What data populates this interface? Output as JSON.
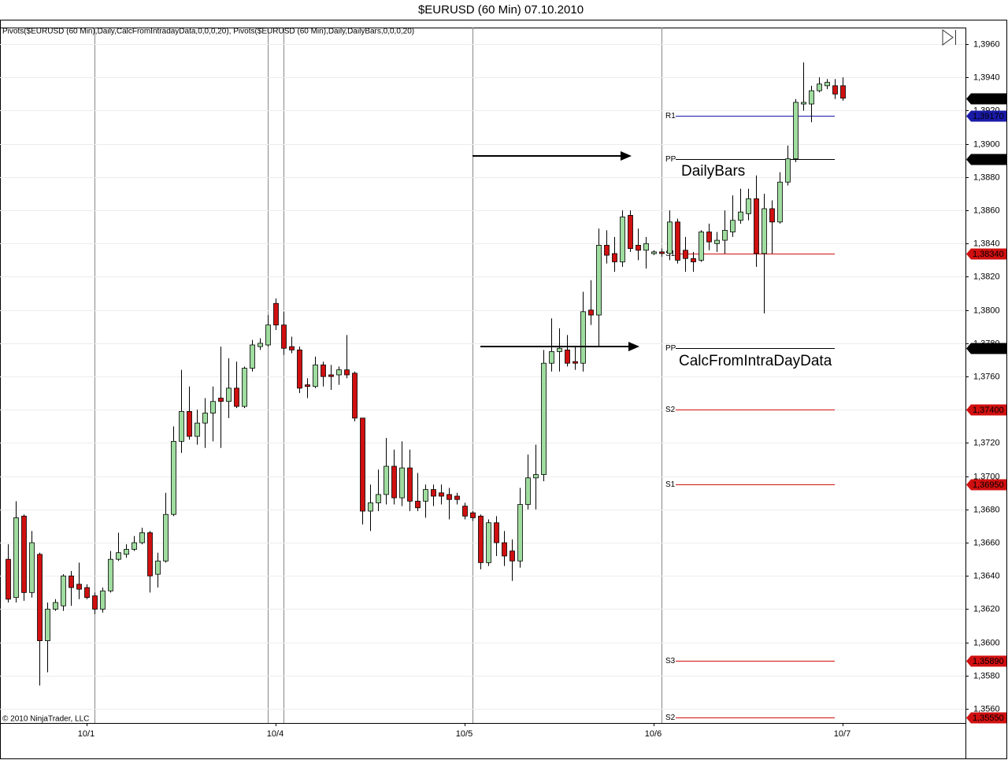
{
  "chart_data": {
    "type": "candlestick",
    "title": "$EURUSD (60 Min)  07.10.2010",
    "indicator_label": "Pivots($EURUSD (60 Min),Daily,CalcFromIntradayData,0,0,0,20), Pivots($EURUSD (60 Min),Daily,DailyBars,0,0,0,20)",
    "copyright": "© 2010 NinjaTrader, LLC",
    "annotations": [
      "DailyBars",
      "CalcFromIntraDayData"
    ],
    "up_color": "#9fdc9f",
    "down_color": "#d01010",
    "grid": true,
    "categories": [
      null,
      null,
      null,
      null,
      null,
      null,
      null,
      null,
      null,
      null,
      "10/1",
      null,
      null,
      null,
      null,
      null,
      null,
      null,
      null,
      null,
      null,
      null,
      null,
      null,
      null,
      null,
      null,
      null,
      null,
      null,
      null,
      null,
      null,
      null,
      "10/4",
      null,
      null,
      null,
      null,
      null,
      null,
      null,
      null,
      null,
      null,
      null,
      null,
      null,
      null,
      null,
      null,
      null,
      null,
      null,
      null,
      null,
      null,
      null,
      "10/5",
      null,
      null,
      null,
      null,
      null,
      null,
      null,
      null,
      null,
      null,
      null,
      null,
      null,
      null,
      null,
      null,
      null,
      null,
      null,
      null,
      null,
      null,
      null,
      "10/6",
      null,
      null,
      null,
      null,
      null,
      null,
      null,
      null,
      null,
      null,
      null,
      null,
      null,
      null,
      null,
      null,
      null,
      null,
      null,
      null,
      null,
      null,
      null,
      "10/7"
    ],
    "open": [
      1.365,
      1.3627,
      1.3676,
      1.363,
      1.3653,
      1.3601,
      1.362,
      1.3622,
      1.364,
      1.3635,
      1.3633,
      1.3628,
      1.362,
      1.3631,
      1.365,
      1.3653,
      1.3656,
      1.366,
      1.3666,
      1.3641,
      1.3649,
      1.3677,
      1.3721,
      1.3739,
      1.3724,
      1.3732,
      1.3738,
      1.3747,
      1.3745,
      1.3753,
      1.3742,
      1.3765,
      1.3778,
      1.3779,
      1.3804,
      1.3791,
      1.3778,
      1.3776,
      1.3755,
      1.3754,
      1.3767,
      1.3761,
      1.3761,
      1.3764,
      1.3762,
      1.3735,
      1.3679,
      1.3684,
      1.3689,
      1.3706,
      1.3687,
      1.3705,
      1.3685,
      1.3685,
      1.3692,
      1.369,
      1.3689,
      1.3688,
      1.3682,
      1.3678,
      1.3676,
      1.3648,
      1.3672,
      1.366,
      1.3655,
      1.3649,
      1.3683,
      1.3699,
      1.3701,
      1.3768,
      1.3775,
      1.3776,
      1.3769,
      1.3768,
      1.38,
      1.3797,
      1.3839,
      1.3834,
      1.3829,
      1.3857,
      1.3839,
      1.3836,
      1.3834,
      1.3835,
      1.3834,
      1.3853,
      1.3836,
      1.3831,
      1.383,
      1.3847,
      1.384,
      1.3842,
      1.3847,
      1.3854,
      1.3858,
      1.3867,
      1.3834,
      1.3861,
      1.3853,
      1.3877,
      1.3891,
      1.3924,
      1.3924,
      1.3932,
      1.3935,
      1.3935,
      1.3935
    ],
    "high": [
      1.3659,
      1.3685,
      1.3677,
      1.3667,
      1.3654,
      1.3624,
      1.3626,
      1.3641,
      1.3643,
      1.3648,
      1.3635,
      1.363,
      1.3633,
      1.3655,
      1.3666,
      1.3659,
      1.3664,
      1.3669,
      1.3667,
      1.3654,
      1.369,
      1.373,
      1.3764,
      1.3754,
      1.374,
      1.3747,
      1.3754,
      1.3778,
      1.3771,
      1.3769,
      1.3766,
      1.3782,
      1.3783,
      1.3797,
      1.3807,
      1.3799,
      1.3784,
      1.3778,
      1.3759,
      1.3772,
      1.3769,
      1.3767,
      1.3766,
      1.3785,
      1.3763,
      1.3735,
      1.3695,
      1.3704,
      1.3723,
      1.3716,
      1.3721,
      1.3716,
      1.3702,
      1.3695,
      1.3695,
      1.3695,
      1.3693,
      1.369,
      1.3684,
      1.3679,
      1.3677,
      1.3674,
      1.3676,
      1.3667,
      1.3662,
      1.3693,
      1.3713,
      1.3719,
      1.3776,
      1.3795,
      1.3789,
      1.3785,
      1.3778,
      1.3811,
      1.3818,
      1.3849,
      1.3848,
      1.3844,
      1.386,
      1.386,
      1.3849,
      1.3844,
      1.3836,
      1.3837,
      1.386,
      1.3855,
      1.3844,
      1.3835,
      1.3848,
      1.3852,
      1.3847,
      1.386,
      1.3869,
      1.3873,
      1.3873,
      1.3881,
      1.387,
      1.3866,
      1.3883,
      1.3899,
      1.3927,
      1.3949,
      1.3935,
      1.394,
      1.3939,
      1.3939,
      1.394
    ],
    "low": [
      1.3624,
      1.3624,
      1.3625,
      1.3627,
      1.3574,
      1.3582,
      1.3619,
      1.3619,
      1.3622,
      1.3626,
      1.3626,
      1.3617,
      1.3618,
      1.363,
      1.3649,
      1.3651,
      1.3655,
      1.3659,
      1.363,
      1.3633,
      1.3648,
      1.3676,
      1.3714,
      1.3722,
      1.3719,
      1.3717,
      1.3721,
      1.3717,
      1.3735,
      1.3741,
      1.3741,
      1.3763,
      1.3776,
      1.3778,
      1.3788,
      1.3773,
      1.3774,
      1.375,
      1.3747,
      1.3753,
      1.3754,
      1.3752,
      1.3755,
      1.3759,
      1.3733,
      1.3671,
      1.3667,
      1.3679,
      1.3683,
      1.3683,
      1.3682,
      1.3679,
      1.3679,
      1.3675,
      1.3682,
      1.3683,
      1.3674,
      1.3683,
      1.3674,
      1.3673,
      1.3644,
      1.3646,
      1.3652,
      1.3646,
      1.3637,
      1.3645,
      1.368,
      1.368,
      1.3697,
      1.3763,
      1.3763,
      1.3766,
      1.3764,
      1.3763,
      1.3791,
      1.3778,
      1.3828,
      1.3823,
      1.3826,
      1.3835,
      1.383,
      1.3825,
      1.3833,
      1.3832,
      1.383,
      1.3828,
      1.3823,
      1.3823,
      1.3829,
      1.3836,
      1.3835,
      1.3834,
      1.3844,
      1.3852,
      1.3854,
      1.3826,
      1.3798,
      1.3834,
      1.3852,
      1.3875,
      1.3889,
      1.392,
      1.3913,
      1.3931,
      1.3933,
      1.3927,
      1.3926
    ],
    "close": [
      1.3626,
      1.3675,
      1.363,
      1.366,
      1.3601,
      1.362,
      1.3624,
      1.364,
      1.3633,
      1.3632,
      1.3627,
      1.362,
      1.3631,
      1.365,
      1.3654,
      1.3656,
      1.366,
      1.3666,
      1.364,
      1.3649,
      1.3677,
      1.3721,
      1.3739,
      1.3724,
      1.3732,
      1.3738,
      1.3745,
      1.3745,
      1.3753,
      1.3742,
      1.3765,
      1.3779,
      1.378,
      1.3791,
      1.3791,
      1.3777,
      1.3776,
      1.3753,
      1.3754,
      1.3767,
      1.376,
      1.376,
      1.3764,
      1.3761,
      1.3735,
      1.3679,
      1.3684,
      1.3689,
      1.3706,
      1.3687,
      1.3705,
      1.3685,
      1.3681,
      1.3692,
      1.3688,
      1.3688,
      1.3686,
      1.3686,
      1.3676,
      1.3675,
      1.3648,
      1.3672,
      1.366,
      1.3652,
      1.3649,
      1.3683,
      1.3699,
      1.3701,
      1.3768,
      1.3775,
      1.3777,
      1.3768,
      1.3768,
      1.3799,
      1.3797,
      1.3839,
      1.3833,
      1.3829,
      1.3856,
      1.3837,
      1.3836,
      1.384,
      1.3835,
      1.3834,
      1.3853,
      1.383,
      1.3831,
      1.3829,
      1.3847,
      1.3841,
      1.3842,
      1.3848,
      1.3854,
      1.3859,
      1.3867,
      1.3834,
      1.3861,
      1.3853,
      1.3877,
      1.3891,
      1.3925,
      1.3925,
      1.3932,
      1.3936,
      1.3937,
      1.393,
      1.39275
    ],
    "ylim": [
      1.35515,
      1.397
    ],
    "yticks": [
      {
        "value": 1.356,
        "label": "1,3560"
      },
      {
        "value": 1.358,
        "label": "1,3580"
      },
      {
        "value": 1.36,
        "label": "1,3600"
      },
      {
        "value": 1.362,
        "label": "1,3620"
      },
      {
        "value": 1.364,
        "label": "1,3640"
      },
      {
        "value": 1.366,
        "label": "1,3660"
      },
      {
        "value": 1.368,
        "label": "1,3680"
      },
      {
        "value": 1.37,
        "label": "1,3700"
      },
      {
        "value": 1.372,
        "label": "1,3720"
      },
      {
        "value": 1.374,
        "label": "1,3740"
      },
      {
        "value": 1.376,
        "label": "1,3760"
      },
      {
        "value": 1.378,
        "label": "1,3780"
      },
      {
        "value": 1.38,
        "label": "1,3800"
      },
      {
        "value": 1.382,
        "label": "1,3820"
      },
      {
        "value": 1.384,
        "label": "1,3840"
      },
      {
        "value": 1.386,
        "label": "1,3860"
      },
      {
        "value": 1.388,
        "label": "1,3880"
      },
      {
        "value": 1.39,
        "label": "1,3900"
      },
      {
        "value": 1.392,
        "label": "1,3920"
      },
      {
        "value": 1.394,
        "label": "1,3940"
      },
      {
        "value": 1.396,
        "label": "1,3960"
      }
    ],
    "pivots": [
      {
        "name": "R1",
        "value": 1.3917,
        "label": "1,39170",
        "color": "#1a1aa8"
      },
      {
        "name": "PP",
        "value": 1.3891,
        "label": "1,38910",
        "color": "#000000"
      },
      {
        "name": "S1",
        "value": 1.3834,
        "label": "1,38340",
        "color": "#d01010"
      },
      {
        "name": "PP",
        "value": 1.3777,
        "label": "1,37770",
        "color": "#000000"
      },
      {
        "name": "S2",
        "value": 1.374,
        "label": "1,37400",
        "color": "#d01010"
      },
      {
        "name": "S1",
        "value": 1.3695,
        "label": "1,36950",
        "color": "#d01010"
      },
      {
        "name": "S3",
        "value": 1.3589,
        "label": "1,35890",
        "color": "#d01010"
      },
      {
        "name": "S2",
        "value": 1.3555,
        "label": "1,35550",
        "color": "#d01010"
      }
    ],
    "last_price": {
      "value": 1.39275,
      "label": "1,3927'5",
      "color": "#000000"
    }
  }
}
